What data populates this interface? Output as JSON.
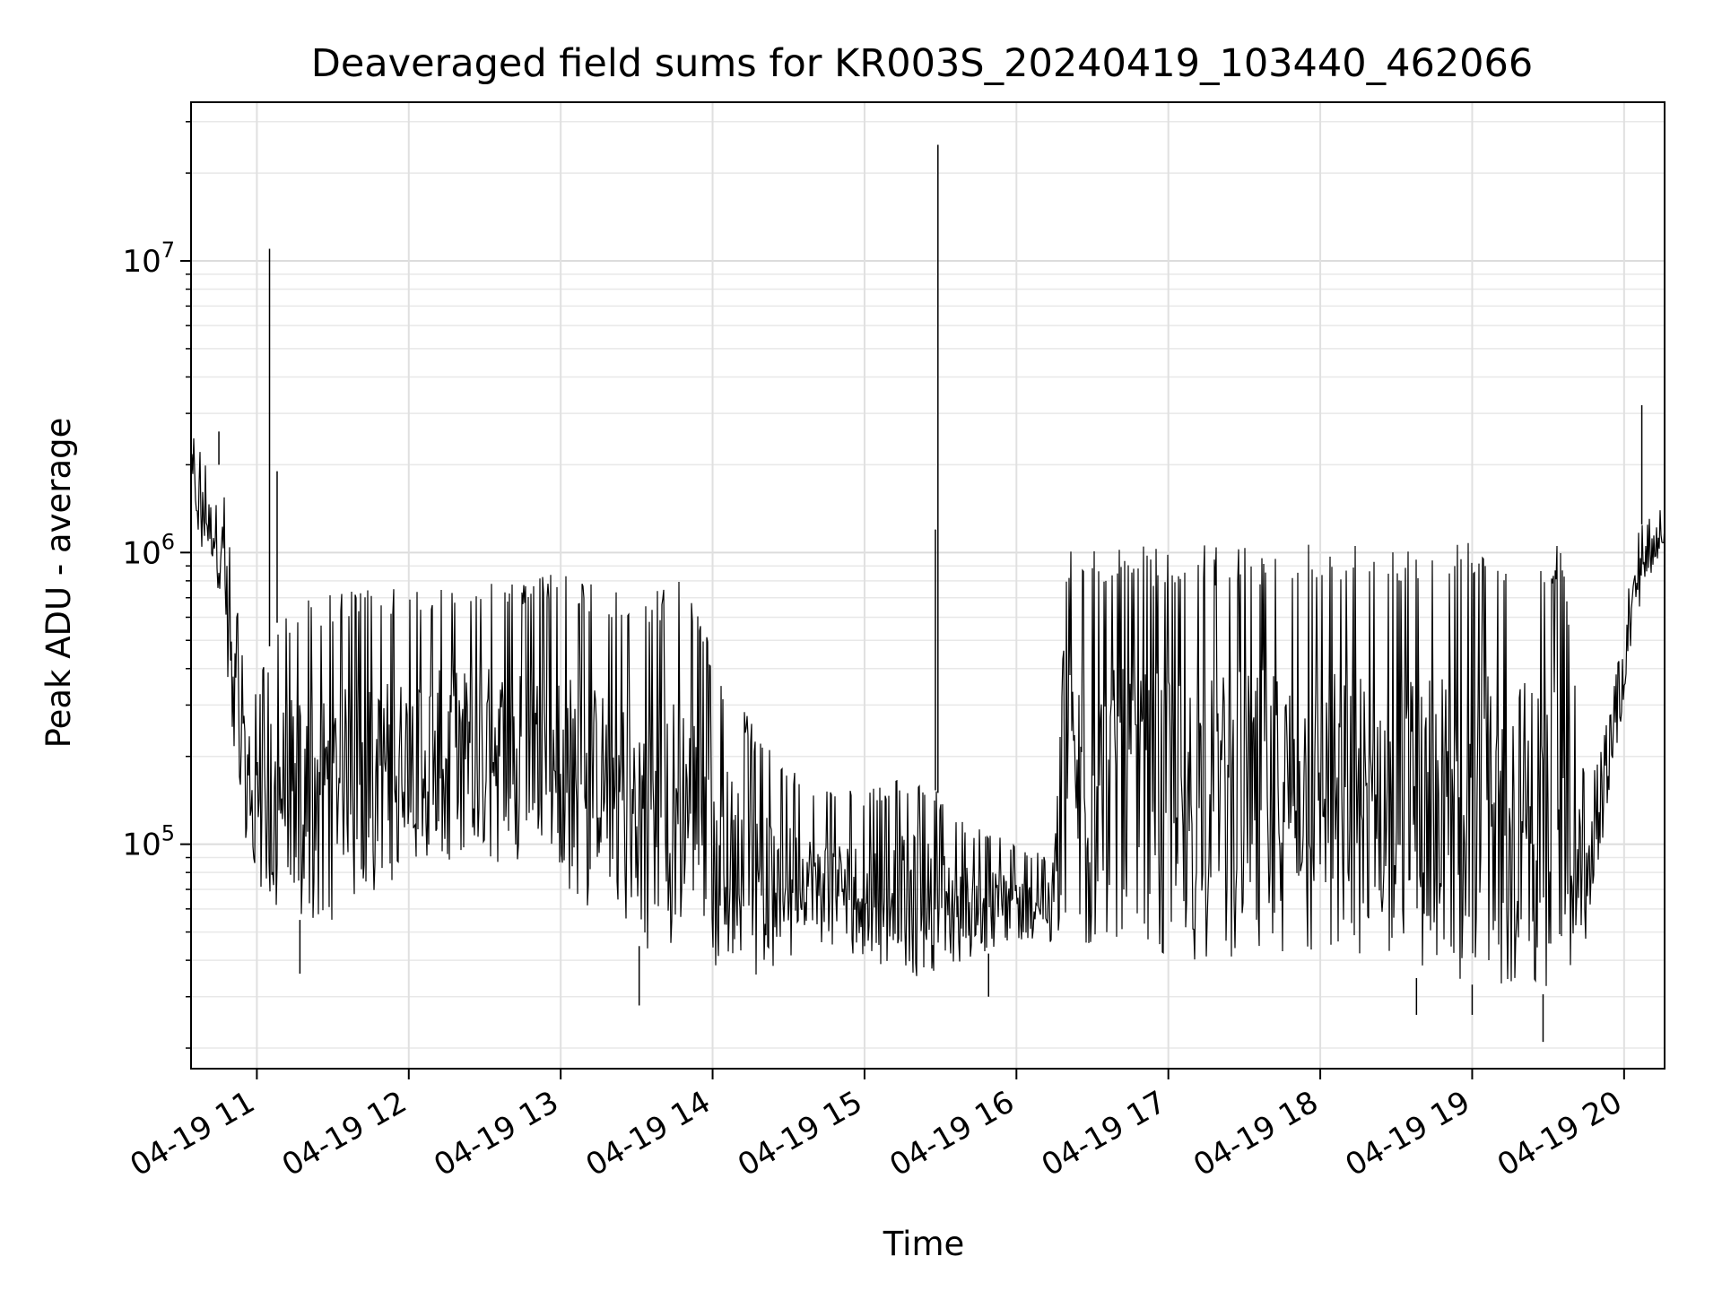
{
  "chart_data": {
    "type": "line",
    "title": "Deaveraged field sums for KR003S_20240419_103440_462066",
    "xlabel": "Time",
    "ylabel": "Peak ADU - average",
    "yscale": "log",
    "ylim": [
      17000,
      35000000
    ],
    "xlim": [
      "2024-04-19 10:34",
      "2024-04-19 20:16"
    ],
    "grid": true,
    "line_color": "#000000",
    "x_ticks": [
      {
        "t": "2024-04-19 11:00",
        "label": "04-19 11"
      },
      {
        "t": "2024-04-19 12:00",
        "label": "04-19 12"
      },
      {
        "t": "2024-04-19 13:00",
        "label": "04-19 13"
      },
      {
        "t": "2024-04-19 14:00",
        "label": "04-19 14"
      },
      {
        "t": "2024-04-19 15:00",
        "label": "04-19 15"
      },
      {
        "t": "2024-04-19 16:00",
        "label": "04-19 16"
      },
      {
        "t": "2024-04-19 17:00",
        "label": "04-19 17"
      },
      {
        "t": "2024-04-19 18:00",
        "label": "04-19 18"
      },
      {
        "t": "2024-04-19 19:00",
        "label": "04-19 19"
      },
      {
        "t": "2024-04-19 20:00",
        "label": "04-19 20"
      }
    ],
    "y_ticks": [
      {
        "value": 100000,
        "base": "10",
        "exp": "5"
      },
      {
        "value": 1000000,
        "base": "10",
        "exp": "6"
      },
      {
        "value": 10000000,
        "base": "10",
        "exp": "7"
      }
    ],
    "series": [
      {
        "envelope": [
          {
            "t": "2024-04-19 10:34",
            "low": 1300000,
            "high": 2800000
          },
          {
            "t": "2024-04-19 10:40",
            "low": 900000,
            "high": 2000000
          },
          {
            "t": "2024-04-19 10:46",
            "low": 700000,
            "high": 2000000
          },
          {
            "t": "2024-04-19 10:50",
            "low": 220000,
            "high": 1000000
          },
          {
            "t": "2024-04-19 10:55",
            "low": 110000,
            "high": 400000
          },
          {
            "t": "2024-04-19 11:00",
            "low": 75000,
            "high": 350000
          },
          {
            "t": "2024-04-19 11:10",
            "low": 55000,
            "high": 650000
          },
          {
            "t": "2024-04-19 11:30",
            "low": 55000,
            "high": 750000
          },
          {
            "t": "2024-04-19 12:00",
            "low": 80000,
            "high": 750000
          },
          {
            "t": "2024-04-19 12:30",
            "low": 90000,
            "high": 800000
          },
          {
            "t": "2024-04-19 13:00",
            "low": 70000,
            "high": 850000
          },
          {
            "t": "2024-04-19 13:30",
            "low": 45000,
            "high": 700000
          },
          {
            "t": "2024-04-19 13:50",
            "low": 40000,
            "high": 850000
          },
          {
            "t": "2024-04-19 14:00",
            "low": 38000,
            "high": 450000
          },
          {
            "t": "2024-04-19 14:20",
            "low": 35000,
            "high": 220000
          },
          {
            "t": "2024-04-19 14:40",
            "low": 45000,
            "high": 160000
          },
          {
            "t": "2024-04-19 15:00",
            "low": 40000,
            "high": 150000
          },
          {
            "t": "2024-04-19 15:20",
            "low": 35000,
            "high": 180000
          },
          {
            "t": "2024-04-19 15:40",
            "low": 40000,
            "high": 120000
          },
          {
            "t": "2024-04-19 16:00",
            "low": 45000,
            "high": 100000
          },
          {
            "t": "2024-04-19 16:15",
            "low": 45000,
            "high": 90000
          },
          {
            "t": "2024-04-19 16:20",
            "low": 45000,
            "high": 1050000
          },
          {
            "t": "2024-04-19 17:00",
            "low": 40000,
            "high": 1050000
          },
          {
            "t": "2024-04-19 18:00",
            "low": 38000,
            "high": 1100000
          },
          {
            "t": "2024-04-19 19:00",
            "low": 33000,
            "high": 1100000
          },
          {
            "t": "2024-04-19 19:35",
            "low": 30000,
            "high": 1100000
          },
          {
            "t": "2024-04-19 19:45",
            "low": 45000,
            "high": 150000
          },
          {
            "t": "2024-04-19 19:55",
            "low": 160000,
            "high": 300000
          },
          {
            "t": "2024-04-19 20:05",
            "low": 600000,
            "high": 1200000
          },
          {
            "t": "2024-04-19 20:16",
            "low": 1100000,
            "high": 1500000
          }
        ],
        "spikes": [
          {
            "t": "2024-04-19 10:45",
            "value": 2600000
          },
          {
            "t": "2024-04-19 11:05",
            "value": 11000000
          },
          {
            "t": "2024-04-19 11:08",
            "value": 1900000
          },
          {
            "t": "2024-04-19 15:29",
            "value": 25000000
          },
          {
            "t": "2024-04-19 15:28",
            "value": 1200000
          },
          {
            "t": "2024-04-19 20:07",
            "value": 3200000
          }
        ],
        "dips": [
          {
            "t": "2024-04-19 11:17",
            "value": 36000
          },
          {
            "t": "2024-04-19 13:31",
            "value": 28000
          },
          {
            "t": "2024-04-19 15:49",
            "value": 30000
          },
          {
            "t": "2024-04-19 18:38",
            "value": 26000
          },
          {
            "t": "2024-04-19 19:00",
            "value": 26000
          },
          {
            "t": "2024-04-19 19:28",
            "value": 21000
          }
        ]
      }
    ]
  }
}
